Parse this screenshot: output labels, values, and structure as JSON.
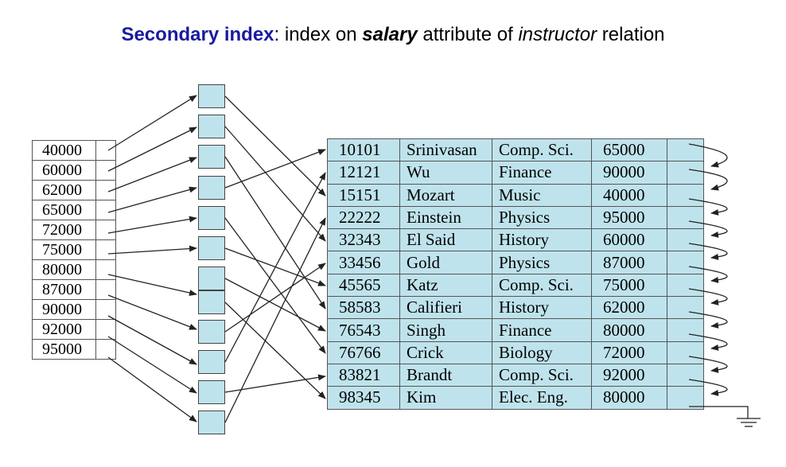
{
  "title": {
    "main": "Secondary index",
    "rest_1": ":  index on ",
    "emph_bold_italic": "salary",
    "rest_2": " attribute of ",
    "emph_italic": "instructor",
    "rest_3": " relation"
  },
  "index_keys": [
    "40000",
    "60000",
    "62000",
    "65000",
    "72000",
    "75000",
    "80000",
    "87000",
    "90000",
    "92000",
    "95000"
  ],
  "relation": {
    "rows": [
      {
        "id": "10101",
        "name": "Srinivasan",
        "dept": "Comp. Sci.",
        "salary": "65000"
      },
      {
        "id": "12121",
        "name": "Wu",
        "dept": "Finance",
        "salary": "90000"
      },
      {
        "id": "15151",
        "name": "Mozart",
        "dept": "Music",
        "salary": "40000"
      },
      {
        "id": "22222",
        "name": "Einstein",
        "dept": "Physics",
        "salary": "95000"
      },
      {
        "id": "32343",
        "name": "El Said",
        "dept": "History",
        "salary": "60000"
      },
      {
        "id": "33456",
        "name": "Gold",
        "dept": "Physics",
        "salary": "87000"
      },
      {
        "id": "45565",
        "name": "Katz",
        "dept": "Comp. Sci.",
        "salary": "75000"
      },
      {
        "id": "58583",
        "name": "Califieri",
        "dept": "History",
        "salary": "62000"
      },
      {
        "id": "76543",
        "name": "Singh",
        "dept": "Finance",
        "salary": "80000"
      },
      {
        "id": "76766",
        "name": "Crick",
        "dept": "Biology",
        "salary": "72000"
      },
      {
        "id": "83821",
        "name": "Brandt",
        "dept": "Comp. Sci.",
        "salary": "92000"
      },
      {
        "id": "98345",
        "name": "Kim",
        "dept": "Elec. Eng.",
        "salary": "80000"
      }
    ]
  },
  "colors": {
    "title_accent": "#1a1aa0",
    "record_fill": "#bfe3ec",
    "line": "#222222"
  }
}
